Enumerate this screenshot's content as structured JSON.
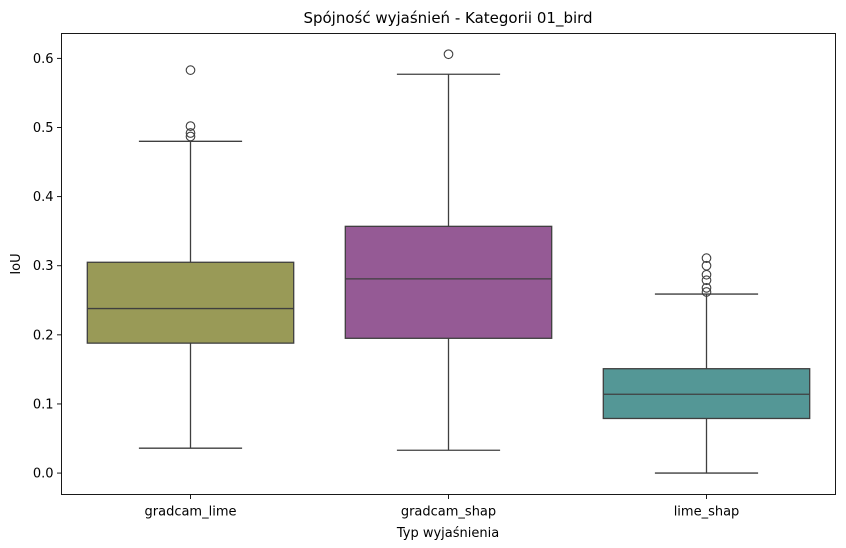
{
  "chart_data": {
    "type": "box",
    "title": "Spójność wyjaśnień - Kategorii 01_bird",
    "xlabel": "Typ wyjaśnienia",
    "ylabel": "IoU",
    "ylim": [
      -0.031,
      0.636
    ],
    "yticks": [
      0.0,
      0.1,
      0.2,
      0.3,
      0.4,
      0.5,
      0.6
    ],
    "ytick_labels": [
      "0.0",
      "0.1",
      "0.2",
      "0.3",
      "0.4",
      "0.5",
      "0.6"
    ],
    "grid": false,
    "categories": [
      "gradcam_lime",
      "gradcam_shap",
      "lime_shap"
    ],
    "boxes": [
      {
        "name": "gradcam_lime",
        "color": "#999a57",
        "whisker_low": 0.036,
        "q1": 0.188,
        "median": 0.238,
        "q3": 0.305,
        "whisker_high": 0.48,
        "outliers": [
          0.487,
          0.492,
          0.502,
          0.583
        ]
      },
      {
        "name": "gradcam_shap",
        "color": "#955a95",
        "whisker_low": 0.033,
        "q1": 0.195,
        "median": 0.281,
        "q3": 0.357,
        "whisker_high": 0.577,
        "outliers": [
          0.606
        ]
      },
      {
        "name": "lime_shap",
        "color": "#549796",
        "whisker_low": 0.0,
        "q1": 0.079,
        "median": 0.114,
        "q3": 0.151,
        "whisker_high": 0.259,
        "outliers": [
          0.262,
          0.268,
          0.279,
          0.287,
          0.3,
          0.311
        ]
      }
    ]
  }
}
